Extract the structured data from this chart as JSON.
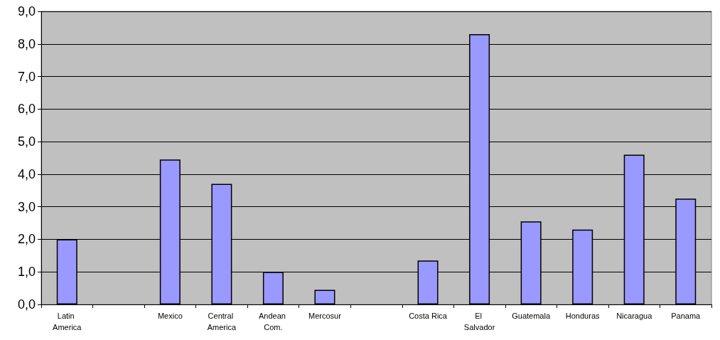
{
  "chart_data": {
    "type": "bar",
    "categories": [
      "Latin America",
      null,
      "Mexico",
      "Central America",
      "Andean Com.",
      "Mercosur",
      null,
      "Costa Rica",
      "El Salvador",
      "Guatemala",
      "Honduras",
      "Nicaragua",
      "Panama"
    ],
    "values": [
      2.0,
      null,
      4.45,
      3.7,
      1.0,
      0.45,
      null,
      1.35,
      8.3,
      2.55,
      2.3,
      4.6,
      3.25
    ],
    "color": "#9999ff",
    "ylim": [
      0,
      9
    ],
    "yticks": [
      {
        "value": 0,
        "label": "0,0"
      },
      {
        "value": 1,
        "label": "1,0"
      },
      {
        "value": 2,
        "label": "2,0"
      },
      {
        "value": 3,
        "label": "3,0"
      },
      {
        "value": 4,
        "label": "4,0"
      },
      {
        "value": 5,
        "label": "5,0"
      },
      {
        "value": 6,
        "label": "6,0"
      },
      {
        "value": 7,
        "label": "7,0"
      },
      {
        "value": 8,
        "label": "8,0"
      },
      {
        "value": 9,
        "label": "9,0"
      }
    ],
    "grid": "y"
  }
}
